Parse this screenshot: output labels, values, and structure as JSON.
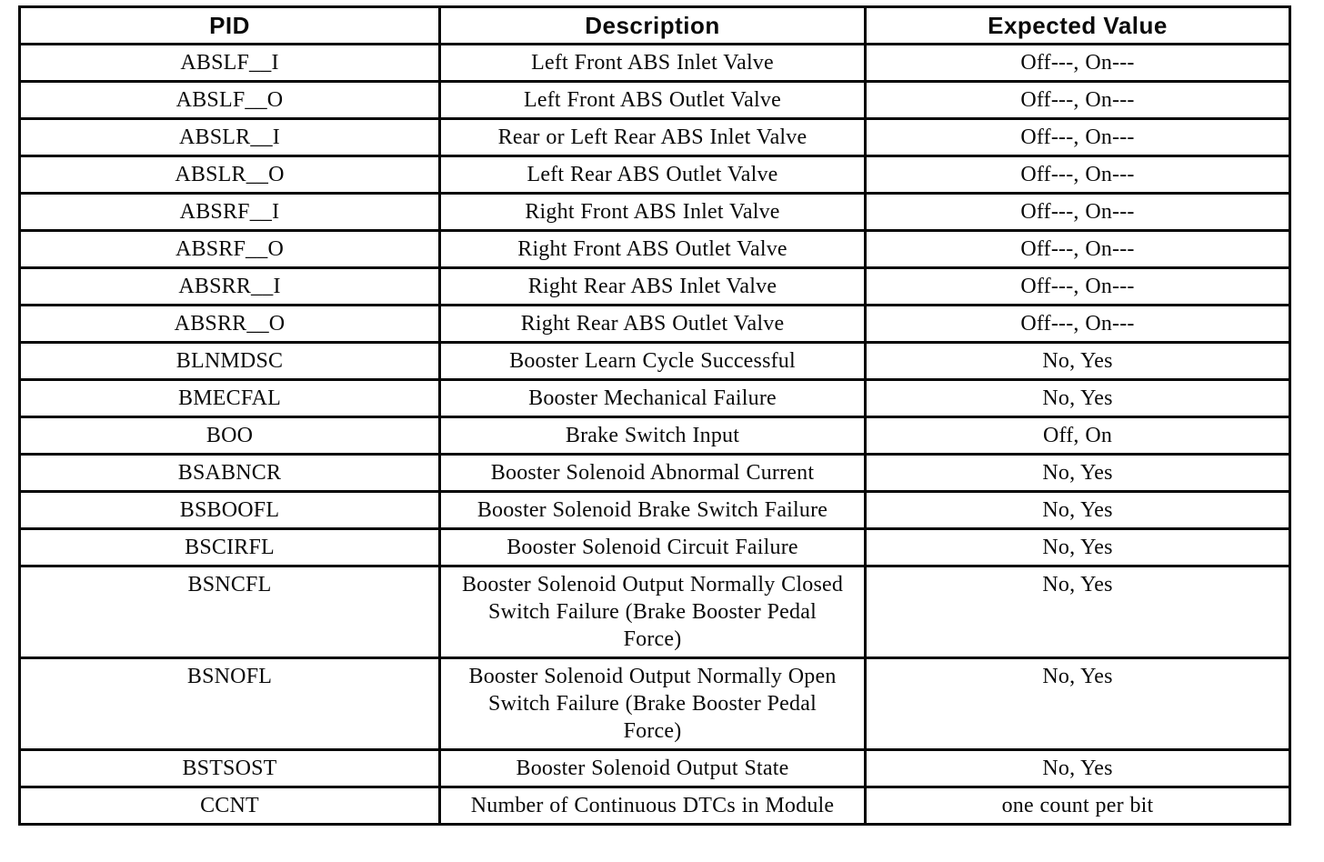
{
  "document": {
    "type": "scanned-table-page",
    "background_color": "#ffffff",
    "border_color": "#060606",
    "text_color": "#0a0a0a"
  },
  "table": {
    "headers": [
      {
        "key": "pid",
        "label": "PID"
      },
      {
        "key": "description",
        "label": "Description"
      },
      {
        "key": "expected",
        "label": "Expected Value"
      }
    ],
    "rows": [
      {
        "pid": "ABSLF__I",
        "description": "Left Front ABS Inlet Valve",
        "expected": "Off---, On---"
      },
      {
        "pid": "ABSLF__O",
        "description": "Left Front ABS Outlet Valve",
        "expected": "Off---, On---"
      },
      {
        "pid": "ABSLR__I",
        "description": "Rear or Left Rear ABS Inlet Valve",
        "expected": "Off---, On---"
      },
      {
        "pid": "ABSLR__O",
        "description": "Left Rear ABS Outlet Valve",
        "expected": "Off---, On---"
      },
      {
        "pid": "ABSRF__I",
        "description": "Right Front ABS Inlet Valve",
        "expected": "Off---, On---"
      },
      {
        "pid": "ABSRF__O",
        "description": "Right Front ABS Outlet Valve",
        "expected": "Off---, On---"
      },
      {
        "pid": "ABSRR__I",
        "description": "Right Rear ABS Inlet Valve",
        "expected": "Off---, On---"
      },
      {
        "pid": "ABSRR__O",
        "description": "Right Rear ABS Outlet Valve",
        "expected": "Off---, On---"
      },
      {
        "pid": "BLNMDSC",
        "description": "Booster Learn Cycle Successful",
        "expected": "No, Yes"
      },
      {
        "pid": "BMECFAL",
        "description": "Booster Mechanical Failure",
        "expected": "No, Yes"
      },
      {
        "pid": "BOO",
        "description": "Brake Switch Input",
        "expected": "Off, On"
      },
      {
        "pid": "BSABNCR",
        "description": "Booster Solenoid Abnormal Current",
        "expected": "No, Yes"
      },
      {
        "pid": "BSBOOFL",
        "description": "Booster Solenoid Brake Switch Failure",
        "expected": "No, Yes"
      },
      {
        "pid": "BSCIRFL",
        "description": "Booster Solenoid Circuit Failure",
        "expected": "No, Yes"
      },
      {
        "pid": "BSNCFL",
        "description": "Booster Solenoid Output Normally Closed Switch Failure (Brake Booster Pedal Force)",
        "expected": "No, Yes"
      },
      {
        "pid": "BSNOFL",
        "description": "Booster Solenoid Output Normally Open Switch Failure (Brake Booster Pedal Force)",
        "expected": "No, Yes"
      },
      {
        "pid": "BSTSOST",
        "description": "Booster Solenoid Output State",
        "expected": "No, Yes"
      },
      {
        "pid": "CCNT",
        "description": "Number of Continuous DTCs in Module",
        "expected": "one count per bit"
      }
    ]
  }
}
